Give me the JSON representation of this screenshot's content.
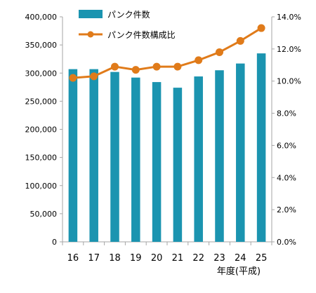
{
  "chart_data": {
    "type": "bar",
    "categories": [
      "16",
      "17",
      "18",
      "19",
      "20",
      "21",
      "22",
      "23",
      "24",
      "25"
    ],
    "xlabel": "年度(平成)",
    "series": [
      {
        "name": "パンク件数",
        "type": "bar",
        "axis": "left",
        "color": "#1b94b0",
        "values": [
          307000,
          307000,
          302000,
          292000,
          284000,
          274000,
          294000,
          305000,
          317000,
          335000
        ]
      },
      {
        "name": "パンク件数構成比",
        "type": "line",
        "axis": "right",
        "color": "#e07b1a",
        "values": [
          10.2,
          10.3,
          10.9,
          10.7,
          10.9,
          10.9,
          11.3,
          11.8,
          12.5,
          13.3
        ]
      }
    ],
    "left_axis": {
      "ylim": [
        0,
        400000
      ],
      "ticks": [
        0,
        50000,
        100000,
        150000,
        200000,
        250000,
        300000,
        350000,
        400000
      ],
      "tick_labels": [
        "0",
        "50,000",
        "100,000",
        "150,000",
        "200,000",
        "250,000",
        "300,000",
        "350,000",
        "400,000"
      ]
    },
    "right_axis": {
      "ylim": [
        0,
        14
      ],
      "ticks": [
        0,
        2,
        4,
        6,
        8,
        10,
        12,
        14
      ],
      "tick_labels": [
        "0.0%",
        "2.0%",
        "4.0%",
        "6.0%",
        "8.0%",
        "10.0%",
        "12.0%",
        "14.0%"
      ]
    },
    "grid": false,
    "legend_position": "top-left"
  }
}
